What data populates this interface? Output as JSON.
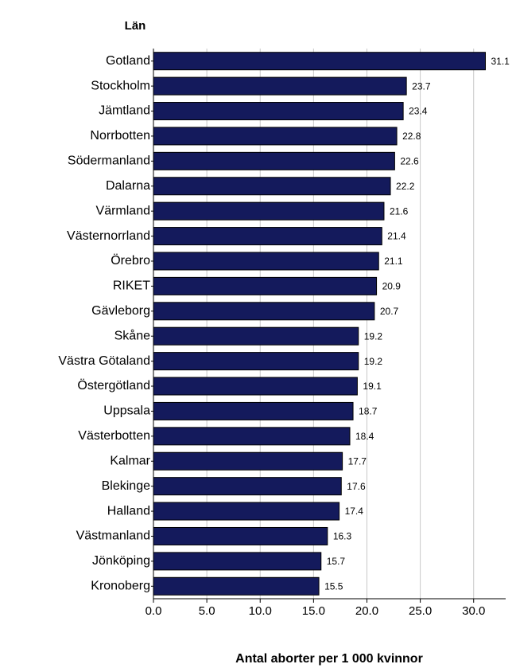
{
  "chart_data": {
    "type": "barh",
    "y_axis_title": "Län",
    "x_axis_title": "Antal aborter per 1 000 kvinnor",
    "categories": [
      "Gotland",
      "Stockholm",
      "Jämtland",
      "Norrbotten",
      "Södermanland",
      "Dalarna",
      "Värmland",
      "Västernorrland",
      "Örebro",
      "RIKET",
      "Gävleborg",
      "Skåne",
      "Västra Götaland",
      "Östergötland",
      "Uppsala",
      "Västerbotten",
      "Kalmar",
      "Blekinge",
      "Halland",
      "Västmanland",
      "Jönköping",
      "Kronoberg"
    ],
    "values": [
      31.1,
      23.7,
      23.4,
      22.8,
      22.6,
      22.2,
      21.6,
      21.4,
      21.1,
      20.9,
      20.7,
      19.2,
      19.2,
      19.1,
      18.7,
      18.4,
      17.7,
      17.6,
      17.4,
      16.3,
      15.7,
      15.5
    ],
    "color": "#141a5c",
    "xlim": [
      0,
      33
    ],
    "xticks": [
      {
        "value": 0,
        "label": "0.0"
      },
      {
        "value": 5,
        "label": "5.0"
      },
      {
        "value": 10,
        "label": "10.0"
      },
      {
        "value": 15,
        "label": "15.0"
      },
      {
        "value": 20,
        "label": "20.0"
      },
      {
        "value": 25,
        "label": "25.0"
      },
      {
        "value": 30,
        "label": "30.0"
      }
    ],
    "grid": true
  }
}
